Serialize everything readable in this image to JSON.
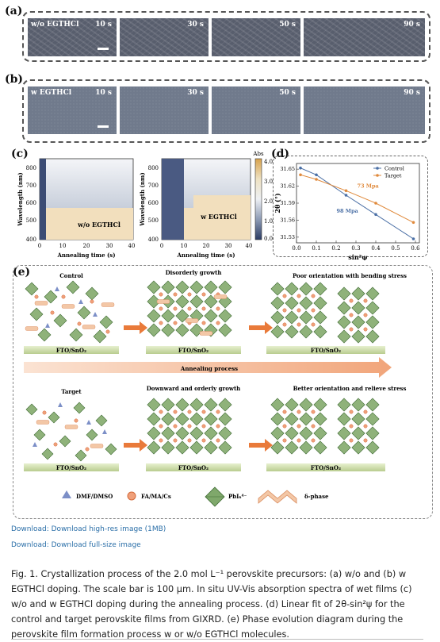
{
  "panel_labels": {
    "a": "(a)",
    "b": "(b)",
    "c": "(c)",
    "d": "(d)",
    "e": "(e)"
  },
  "row_a": {
    "sample": "w/o EGTHCl",
    "times": [
      "10 s",
      "30 s",
      "50 s",
      "90 s"
    ]
  },
  "row_b": {
    "sample": "w EGTHCl",
    "times": [
      "10 s",
      "30 s",
      "50 s",
      "90 s"
    ]
  },
  "panel_c": {
    "ylabel": "Wavelength (nm)",
    "xlabel": "Annealing time (s)",
    "yticks": [
      "800",
      "700",
      "600",
      "500",
      "400"
    ],
    "xticks": [
      "0",
      "10",
      "20",
      "30",
      "40"
    ],
    "left_label": "w/o EGTHCl",
    "right_label": "w EGTHCl",
    "colorbar_title": "Abs",
    "colorbar_ticks": [
      "4.0",
      "3.0",
      "2.0",
      "1.0",
      "0.0"
    ]
  },
  "chart_data": {
    "type": "scatter",
    "xlabel": "sin²ψ",
    "ylabel": "2θ (°)",
    "x_ticks": [
      "0.0",
      "0.1",
      "0.2",
      "0.3",
      "0.4",
      "0.5",
      "0.6"
    ],
    "y_ticks": [
      "31.65",
      "31.62",
      "31.59",
      "31.56",
      "31.53"
    ],
    "xlim": [
      0.0,
      0.62
    ],
    "ylim": [
      31.52,
      31.66
    ],
    "legend_placement": "top-right",
    "series": [
      {
        "name": "Control",
        "color": "#4a6fa5",
        "x": [
          0.02,
          0.1,
          0.25,
          0.4,
          0.59
        ],
        "y": [
          31.652,
          31.64,
          31.604,
          31.57,
          31.527
        ],
        "annotation": "98 Mpa"
      },
      {
        "name": "Target",
        "color": "#e08a3c",
        "x": [
          0.02,
          0.1,
          0.25,
          0.4,
          0.59
        ],
        "y": [
          31.64,
          31.632,
          31.612,
          31.59,
          31.556
        ],
        "annotation": "73 Mpa"
      }
    ]
  },
  "panel_e": {
    "top_titles": [
      "Control",
      "Disorderly growth",
      "Poor orientation with bending stress"
    ],
    "bottom_titles": [
      "Target",
      "Downward and orderly growth",
      "Better orientation and relieve stress"
    ],
    "substrate": "FTO/SnO₂",
    "process": "Annealing process",
    "legend": {
      "dmf": "DMF/DMSO",
      "fa": "FA/MA/Cs",
      "pb": "PbI₆⁴⁻",
      "delta": "δ-phase"
    }
  },
  "downloads": {
    "high_res": "Download: Download high-res image (1MB)",
    "full_size": "Download: Download full-size image"
  },
  "caption": "Fig. 1. Crystallization process of the 2.0 mol L⁻¹ perovskite precursors: (a) w/o and (b) w EGTHCl doping. The scale bar is 100 μm. In situ UV-Vis absorption spectra of wet films (c) w/o and w EGTHCl doping during the annealing process. (d) Linear fit of 2θ-sin²ψ for the control and target perovskite films from GIXRD. (e) Phase evolution diagram during the perovskite film formation process w or w/o EGTHCl molecules."
}
